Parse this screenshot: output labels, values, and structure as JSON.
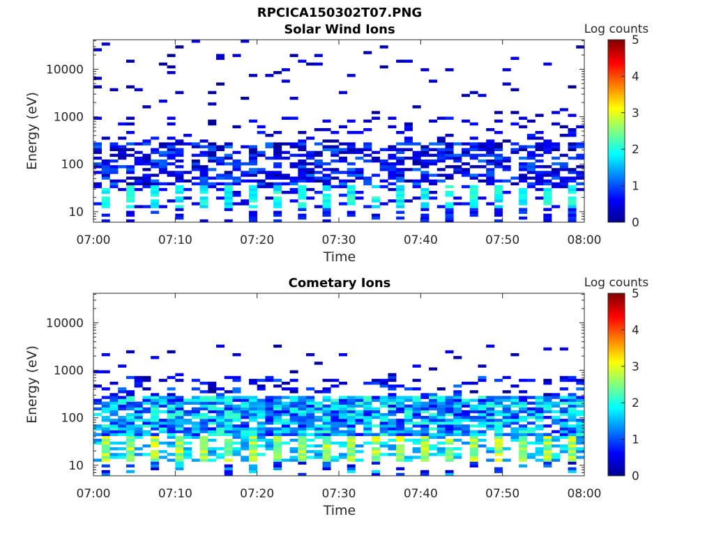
{
  "figure": {
    "title": "RPCICA150302T07.PNG"
  },
  "colors": {
    "cmap": [
      "#00008f",
      "#0000ff",
      "#0080ff",
      "#00ffff",
      "#80ff80",
      "#ffff00",
      "#ff8000",
      "#ff0000",
      "#800000"
    ],
    "axis": "#262626"
  },
  "chart_data": [
    {
      "type": "heatmap",
      "title": "Solar Wind Ions",
      "xlabel": "Time",
      "ylabel": "Energy (eV)",
      "x_ticks": [
        "07:00",
        "07:10",
        "07:20",
        "07:30",
        "07:40",
        "07:50",
        "08:00"
      ],
      "y_ticks": [
        "10",
        "100",
        "1000",
        "10000"
      ],
      "y_scale": "log",
      "ylim": [
        6,
        42000
      ],
      "xlim": [
        "07:00",
        "08:00"
      ],
      "colorbar": {
        "label": "Log counts",
        "ticks": [
          "0",
          "1",
          "2",
          "3",
          "4",
          "5"
        ],
        "range": [
          0,
          5
        ]
      },
      "description_of_values": "Spectrogram of log ion counts vs energy over time; counts mostly 0-2 below 300 eV, sparse low counts at higher energies.",
      "profile": {
        "periodic_low_energy_min": 1.6,
        "low_band_max": 1.2,
        "mid_band_max": 0.8,
        "high_energy_sparse_max": 0.5
      }
    },
    {
      "type": "heatmap",
      "title": "Cometary Ions",
      "xlabel": "Time",
      "ylabel": "Energy (eV)",
      "x_ticks": [
        "07:00",
        "07:10",
        "07:20",
        "07:30",
        "07:40",
        "07:50",
        "08:00"
      ],
      "y_ticks": [
        "10",
        "100",
        "1000",
        "10000"
      ],
      "y_scale": "log",
      "ylim": [
        6,
        42000
      ],
      "xlim": [
        "07:00",
        "08:00"
      ],
      "colorbar": {
        "label": "Log counts",
        "ticks": [
          "0",
          "1",
          "2",
          "3",
          "4",
          "5"
        ],
        "range": [
          0,
          5
        ]
      },
      "description_of_values": "Spectrogram of log ion counts vs energy; strong periodic peaks up to ~3 near 20-40 eV, broad 1-2 counts from 40-300 eV, sparse counts up to ~3000 eV.",
      "profile": {
        "periodic_low_energy_max": 3.0,
        "low_band_max": 2.2,
        "mid_band_max": 1.2,
        "high_energy_sparse_max": 0.6
      }
    }
  ]
}
